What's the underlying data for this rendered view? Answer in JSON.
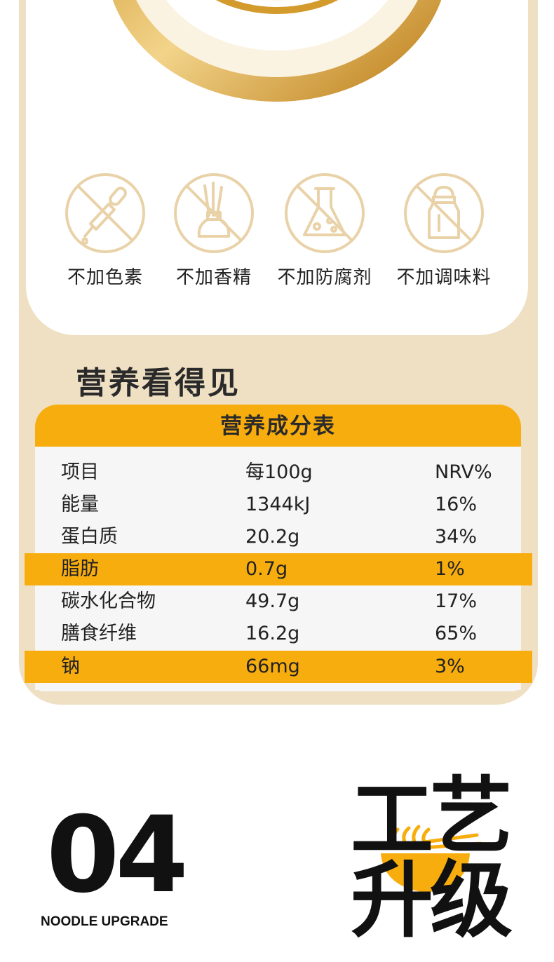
{
  "features": [
    {
      "label": "不加色素",
      "icon": "no-pigment-dropper-icon"
    },
    {
      "label": "不加香精",
      "icon": "no-fragrance-reed-diffuser-icon"
    },
    {
      "label": "不加防腐剂",
      "icon": "no-preservative-flask-icon"
    },
    {
      "label": "不加调味料",
      "icon": "no-seasoning-shaker-icon"
    }
  ],
  "nutrition_section": {
    "title": "营养看得见",
    "table_title": "营养成分表",
    "rows": [
      {
        "item": "项目",
        "per100g": "每100g",
        "nrv": "NRV%",
        "highlight": false
      },
      {
        "item": "能量",
        "per100g": "1344kJ",
        "nrv": "16%",
        "highlight": false
      },
      {
        "item": "蛋白质",
        "per100g": "20.2g",
        "nrv": "34%",
        "highlight": false
      },
      {
        "item": "脂肪",
        "per100g": "0.7g",
        "nrv": "1%",
        "highlight": true
      },
      {
        "item": "碳水化合物",
        "per100g": "49.7g",
        "nrv": "17%",
        "highlight": false
      },
      {
        "item": "膳食纤维",
        "per100g": "16.2g",
        "nrv": "65%",
        "highlight": false
      },
      {
        "item": "钠",
        "per100g": "66mg",
        "nrv": "3%",
        "highlight": true
      }
    ]
  },
  "craft_section": {
    "number": "04",
    "caption": "NOODLE UPGRADE",
    "title_chars": [
      "工",
      "艺",
      "升",
      "级"
    ],
    "icon": "noodle-bowl-icon"
  },
  "colors": {
    "accent": "#f8ad0f",
    "beige": "#efe0c4",
    "icon_line": "#e9d2a8"
  }
}
